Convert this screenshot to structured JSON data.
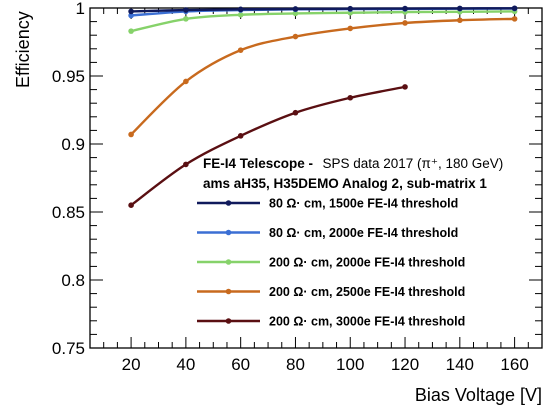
{
  "chart_data": {
    "type": "line",
    "xlabel": "Bias Voltage [V]",
    "ylabel": "Efficiency",
    "xlim": [
      5,
      170
    ],
    "ylim": [
      0.75,
      1.0
    ],
    "x_ticks": [
      20,
      40,
      60,
      80,
      100,
      120,
      140,
      160
    ],
    "y_ticks": [
      {
        "value": 0.75,
        "label": "0.75"
      },
      {
        "value": 0.8,
        "label": "0.8"
      },
      {
        "value": 0.85,
        "label": "0.85"
      },
      {
        "value": 0.9,
        "label": "0.9"
      },
      {
        "value": 0.95,
        "label": "0.95"
      },
      {
        "value": 1.0,
        "label": "1"
      }
    ],
    "annotation": {
      "line1_bold": "FE-I4 Telescope -",
      "line1_normal": "SPS data 2017 (π⁺, 180 GeV)",
      "line2": "ams aH35, H35DEMO Analog 2, sub-matrix 1"
    },
    "legend_position": "center-right",
    "series": [
      {
        "name": "80  Ω· cm, 1500e FE-I4 threshold",
        "color": "#101a5c",
        "x": [
          20,
          40,
          60,
          80,
          100,
          120,
          140,
          160
        ],
        "values": [
          0.9975,
          0.9985,
          0.999,
          0.9993,
          0.9995,
          0.9996,
          0.9997,
          0.9998
        ]
      },
      {
        "name": "80  Ω· cm, 2000e FE-I4 threshold",
        "color": "#3b6fd4",
        "x": [
          20,
          40,
          60,
          80,
          100,
          120,
          140,
          160
        ],
        "values": [
          0.9945,
          0.9975,
          0.9985,
          0.999,
          0.9992,
          0.9993,
          0.9995,
          0.9996
        ]
      },
      {
        "name": "200  Ω· cm, 2000e FE-I4 threshold",
        "color": "#86d26a",
        "x": [
          20,
          40,
          60,
          80,
          100,
          120,
          140,
          160
        ],
        "values": [
          0.983,
          0.992,
          0.995,
          0.996,
          0.9965,
          0.997,
          0.9972,
          0.9975
        ]
      },
      {
        "name": "200  Ω· cm, 2500e FE-I4 threshold",
        "color": "#c86a1e",
        "x": [
          20,
          40,
          60,
          80,
          100,
          120,
          140,
          160
        ],
        "values": [
          0.907,
          0.946,
          0.969,
          0.979,
          0.985,
          0.989,
          0.991,
          0.992
        ]
      },
      {
        "name": "200  Ω· cm, 3000e FE-I4 threshold",
        "color": "#5a0f12",
        "x": [
          20,
          40,
          60,
          80,
          100,
          120
        ],
        "values": [
          0.855,
          0.885,
          0.906,
          0.923,
          0.934,
          0.942
        ]
      }
    ]
  }
}
